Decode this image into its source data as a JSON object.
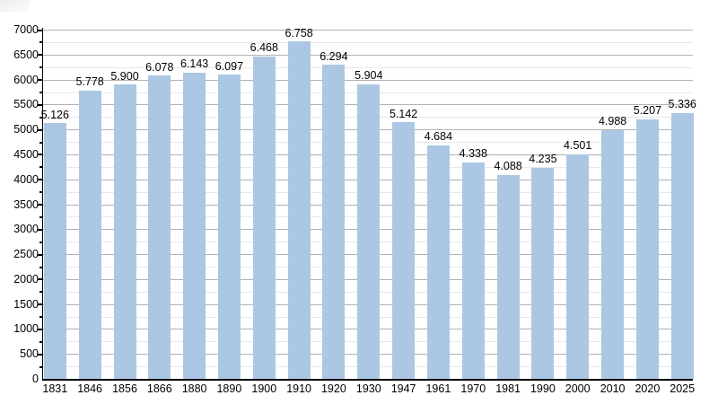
{
  "decor": {
    "top_left_artifact_color": "#efeeec"
  },
  "chart_data": {
    "type": "bar",
    "title": "",
    "xlabel": "",
    "ylabel": "",
    "categories": [
      "1831",
      "1846",
      "1856",
      "1866",
      "1880",
      "1890",
      "1900",
      "1910",
      "1920",
      "1930",
      "1947",
      "1961",
      "1970",
      "1981",
      "1990",
      "2000",
      "2010",
      "2020",
      "2025"
    ],
    "values": [
      5126,
      5778,
      5900,
      6078,
      6143,
      6097,
      6468,
      6758,
      6294,
      5904,
      5142,
      4684,
      4338,
      4088,
      4235,
      4501,
      4988,
      5207,
      5336
    ],
    "value_labels": [
      "5.126",
      "5.778",
      "5.900",
      "6.078",
      "6.143",
      "6.097",
      "6.468",
      "6.758",
      "6.294",
      "5.904",
      "5.142",
      "4.684",
      "4.338",
      "4.088",
      "4.235",
      "4.501",
      "4.988",
      "5.207",
      "5.336"
    ],
    "ylim": [
      0,
      7000
    ],
    "y_major_step": 500,
    "y_minor_step": 250,
    "y_tick_labels": [
      "0",
      "500",
      "1000",
      "1500",
      "2000",
      "2500",
      "3000",
      "3500",
      "4000",
      "4500",
      "5000",
      "5500",
      "6000",
      "6500",
      "7000"
    ],
    "grid": "on",
    "legend": "none",
    "colors": {
      "bar": "#abc7e4",
      "major_grid": "#b2b2b2",
      "minor_grid": "#e8e8e8",
      "axis": "#000000",
      "text": "#000000"
    }
  }
}
